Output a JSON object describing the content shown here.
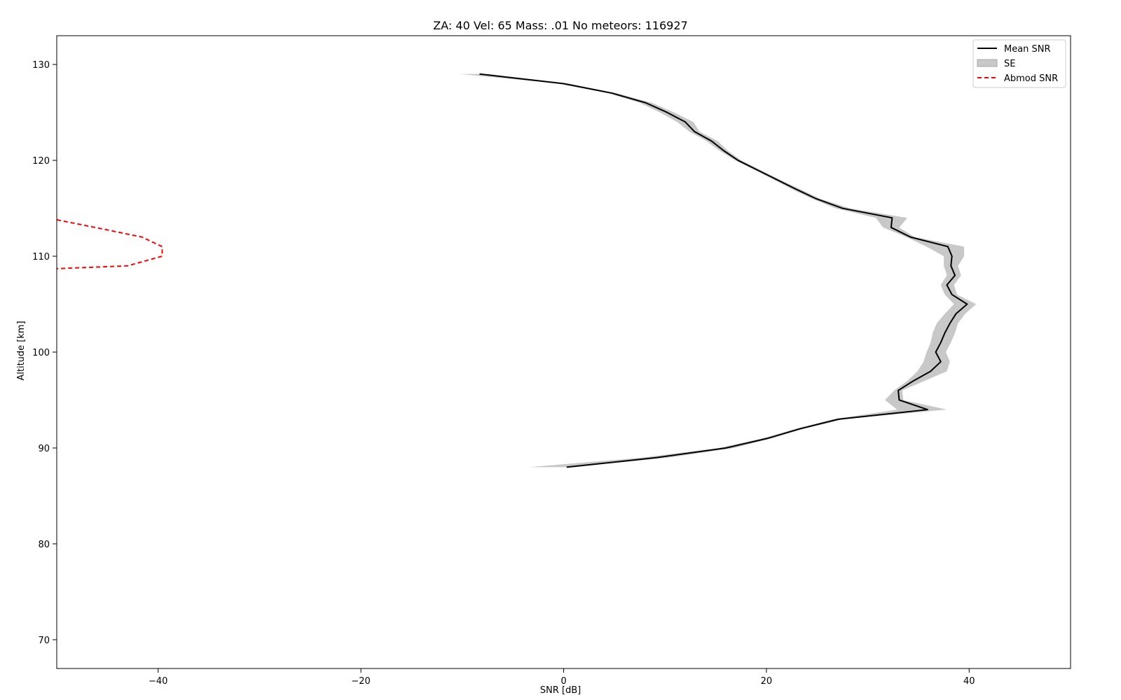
{
  "chart_data": {
    "type": "line",
    "title": "ZA: 40 Vel: 65 Mass: .01 No meteors: 116927",
    "xlabel": "SNR [dB]",
    "ylabel": "Altitude [km]",
    "xlim": [
      -50,
      50
    ],
    "ylim": [
      67,
      133
    ],
    "xticks": [
      -40,
      -20,
      0,
      20,
      40
    ],
    "xtick_labels": [
      "−40",
      "−20",
      "0",
      "20",
      "40"
    ],
    "yticks": [
      70,
      80,
      90,
      100,
      110,
      120,
      130
    ],
    "ytick_labels": [
      "70",
      "80",
      "90",
      "100",
      "110",
      "120",
      "130"
    ],
    "grid": false,
    "legend_position": "top-right",
    "legend": [
      "Mean SNR",
      "SE",
      "Abmod SNR"
    ],
    "colors": {
      "mean": "#000000",
      "se": "#c8c8c8",
      "abmod": "#ff0000"
    },
    "series": [
      {
        "name": "Mean SNR",
        "style": "solid",
        "y": [
          129,
          128,
          127,
          126,
          125,
          124,
          123,
          122,
          121,
          120,
          119,
          118,
          117,
          116,
          115,
          114,
          113,
          112,
          111,
          110,
          109,
          108,
          107,
          106,
          105,
          104,
          103,
          102,
          101,
          100,
          99,
          98,
          97,
          96,
          95,
          94,
          93,
          92,
          91,
          90,
          89,
          88
        ],
        "x": [
          -8.3,
          0.0,
          4.8,
          8.1,
          10.2,
          12.0,
          12.9,
          14.6,
          15.8,
          17.2,
          19.1,
          21.0,
          22.9,
          24.9,
          27.5,
          32.4,
          32.3,
          34.2,
          37.9,
          38.3,
          38.2,
          38.6,
          37.8,
          38.3,
          39.8,
          38.7,
          38.1,
          37.6,
          37.2,
          36.7,
          37.2,
          36.2,
          34.5,
          33.0,
          33.1,
          35.9,
          27.1,
          23.3,
          20.1,
          16.0,
          9.2,
          0.3
        ]
      },
      {
        "name": "SE",
        "style": "band",
        "y": [
          129,
          128,
          127,
          126,
          125,
          124,
          123,
          122,
          121,
          120,
          119,
          118,
          117,
          116,
          115,
          114,
          113,
          112,
          111,
          110,
          109,
          108,
          107,
          106,
          105,
          104,
          103,
          102,
          101,
          100,
          99,
          98,
          97,
          96,
          95,
          94,
          93,
          92,
          91,
          90,
          89,
          88
        ],
        "lower": [
          -10.2,
          -0.5,
          4.4,
          7.5,
          9.5,
          11.2,
          12.4,
          14.1,
          15.4,
          16.9,
          18.8,
          20.7,
          22.5,
          24.5,
          26.8,
          30.8,
          31.5,
          33.8,
          35.8,
          37.5,
          37.5,
          37.8,
          37.2,
          37.6,
          38.5,
          37.6,
          36.8,
          36.4,
          36.2,
          35.8,
          35.5,
          34.9,
          33.9,
          32.6,
          31.7,
          32.9,
          26.6,
          22.9,
          19.6,
          15.3,
          7.8,
          -3.4
        ],
        "upper": [
          -7.5,
          0.5,
          5.2,
          8.7,
          10.9,
          12.8,
          13.4,
          15.2,
          16.2,
          17.5,
          19.4,
          21.3,
          23.3,
          25.3,
          28.2,
          33.9,
          33.1,
          34.6,
          39.5,
          39.5,
          38.9,
          39.2,
          38.5,
          38.8,
          40.7,
          39.6,
          38.9,
          38.6,
          38.2,
          37.7,
          38.1,
          37.8,
          35.6,
          33.4,
          33.5,
          37.8,
          27.6,
          23.7,
          20.5,
          16.8,
          10.4,
          0.9
        ]
      },
      {
        "name": "Abmod SNR",
        "style": "dashed",
        "y": [
          113.8,
          113,
          112,
          111,
          110,
          109,
          108.7
        ],
        "x": [
          -50,
          -46.2,
          -41.6,
          -39.6,
          -39.6,
          -43.0,
          -50
        ]
      }
    ]
  }
}
